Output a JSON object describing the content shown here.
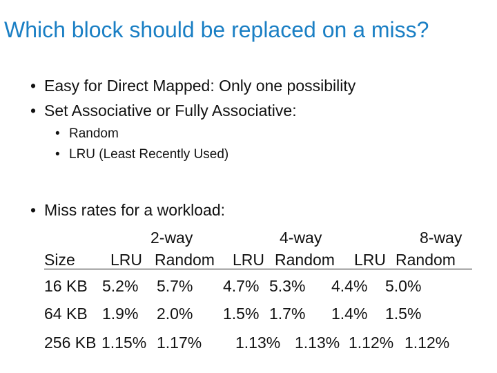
{
  "title": "Which block should be replaced on a miss?",
  "bullets": [
    "Easy for Direct Mapped: Only one possibility",
    "Set Associative or Fully Associative:"
  ],
  "sub_bullets": [
    "Random",
    "LRU (Least Recently Used)"
  ],
  "miss_bullet": "Miss rates for a workload:",
  "table": {
    "way_headers": [
      "2-way",
      "4-way",
      "8-way"
    ],
    "col_headers": [
      "Size",
      "LRU",
      "Random",
      "LRU",
      "Random",
      "LRU",
      "Random"
    ],
    "rows": [
      [
        "16 KB",
        "5.2%",
        "5.7%",
        "4.7%",
        "5.3%",
        "4.4%",
        "5.0%"
      ],
      [
        "64 KB",
        "1.9%",
        "2.0%",
        "1.5%",
        "1.7%",
        "1.4%",
        "1.5%"
      ],
      [
        "256 KB",
        "1.15%",
        "1.17%",
        "1.13%",
        "1.13%",
        "1.12%",
        "1.12%"
      ]
    ]
  },
  "bullet_char": "•"
}
